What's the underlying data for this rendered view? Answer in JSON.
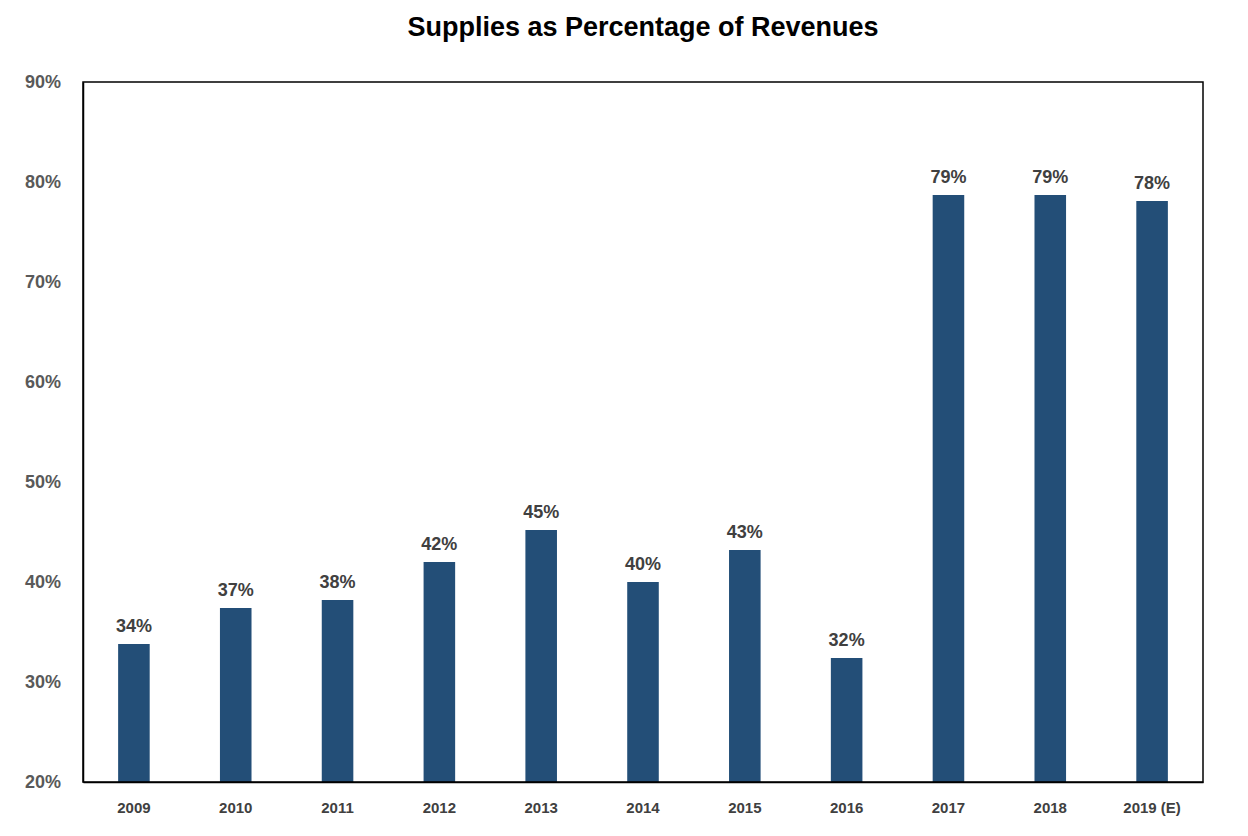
{
  "chart_data": {
    "type": "bar",
    "title": "Supplies as Percentage of Revenues",
    "categories": [
      "2009",
      "2010",
      "2011",
      "2012",
      "2013",
      "2014",
      "2015",
      "2016",
      "2017",
      "2018",
      "2019 (E)"
    ],
    "values": [
      33.8,
      37.4,
      38.2,
      42,
      45.2,
      40,
      43.2,
      32.4,
      78.7,
      78.7,
      78.1
    ],
    "value_labels": [
      "34%",
      "37%",
      "38%",
      "42%",
      "45%",
      "40%",
      "43%",
      "32%",
      "79%",
      "79%",
      "78%"
    ],
    "color": "#234e77",
    "ylim": [
      20,
      90
    ],
    "yticks": [
      {
        "value": 20,
        "label": "20%"
      },
      {
        "value": 30,
        "label": "30%"
      },
      {
        "value": 40,
        "label": "40%"
      },
      {
        "value": 50,
        "label": "50%"
      },
      {
        "value": 60,
        "label": "60%"
      },
      {
        "value": 70,
        "label": "70%"
      },
      {
        "value": 80,
        "label": "80%"
      },
      {
        "value": 90,
        "label": "90%"
      }
    ],
    "grid": false,
    "data_labels": true
  }
}
